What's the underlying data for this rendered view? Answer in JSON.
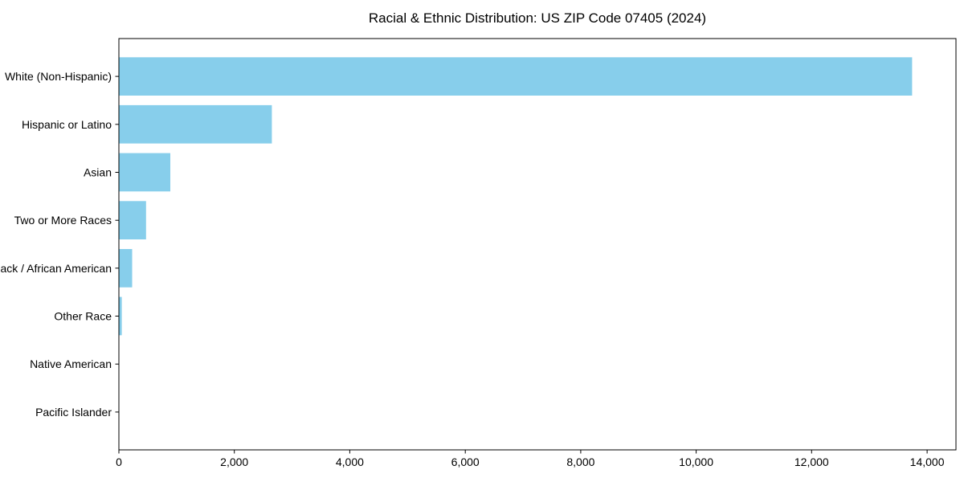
{
  "chart_data": {
    "type": "bar",
    "orientation": "horizontal",
    "title": "Racial & Ethnic Distribution: US ZIP Code 07405 (2024)",
    "categories": [
      "White (Non-Hispanic)",
      "Hispanic or Latino",
      "Asian",
      "Two or More Races",
      "Black / African American",
      "Other Race",
      "Native American",
      "Pacific Islander"
    ],
    "values": [
      13740,
      2650,
      890,
      470,
      230,
      50,
      0,
      0
    ],
    "xlabel": "",
    "ylabel": "",
    "xlim": [
      0,
      14500
    ],
    "xticks": [
      0,
      2000,
      4000,
      6000,
      8000,
      10000,
      12000,
      14000
    ],
    "xtick_labels": [
      "0",
      "2,000",
      "4,000",
      "6,000",
      "8,000",
      "10,000",
      "12,000",
      "14,000"
    ],
    "bar_color": "#87CEEB",
    "axis_color": "#000000",
    "text_color": "#000000",
    "background_color": "#ffffff",
    "grid": false,
    "legend": "none"
  }
}
